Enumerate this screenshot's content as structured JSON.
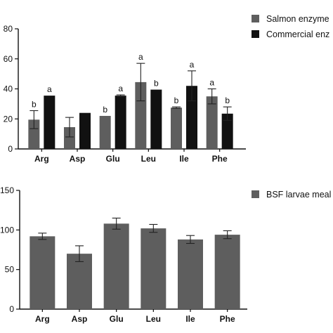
{
  "chart_data": [
    {
      "type": "bar",
      "categories": [
        "Arg",
        "Asp",
        "Glu",
        "Leu",
        "Ile",
        "Phe"
      ],
      "series": [
        {
          "name": "Salmon enzyme",
          "color": "#5e5e5e",
          "values": [
            19.5,
            14.5,
            22,
            44.5,
            27.5,
            35
          ],
          "errors": [
            6,
            6.5,
            0,
            12.5,
            0.5,
            5
          ],
          "labels": [
            "b",
            "",
            "b",
            "a",
            "b",
            "a"
          ]
        },
        {
          "name": "Commercial enz",
          "color": "#111111",
          "values": [
            35.5,
            24,
            35.5,
            39.5,
            42,
            23.5
          ],
          "errors": [
            0,
            0,
            0.5,
            0,
            10,
            4.5
          ],
          "labels": [
            "a",
            "",
            "a",
            "b",
            "a",
            "b"
          ]
        }
      ],
      "ylim": [
        0,
        80
      ],
      "yticks": [
        "0",
        "20",
        "40",
        "60",
        "80"
      ],
      "grid": false,
      "legend": "top-right"
    },
    {
      "type": "bar",
      "categories": [
        "Arg",
        "Asp",
        "Glu",
        "Leu",
        "Ile",
        "Phe"
      ],
      "series": [
        {
          "name": "BSF larvae meal",
          "color": "#5e5e5e",
          "values": [
            92,
            70,
            108,
            102,
            88,
            94
          ],
          "errors": [
            4,
            10,
            7,
            5,
            5,
            5
          ]
        }
      ],
      "ylim": [
        0,
        150
      ],
      "yticks": [
        "0",
        "50",
        "100",
        "150"
      ],
      "grid": false,
      "legend": "top-right"
    }
  ]
}
